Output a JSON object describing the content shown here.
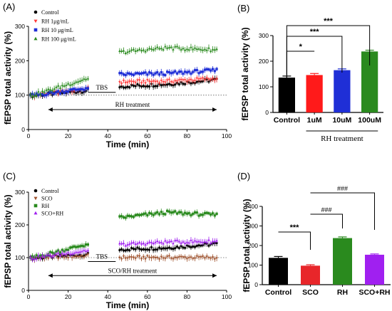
{
  "panels": {
    "A": {
      "label": "(A)"
    },
    "B": {
      "label": "(B)"
    },
    "C": {
      "label": "(C)"
    },
    "D": {
      "label": "(D)"
    }
  },
  "colors": {
    "control": "#000000",
    "rh1": "#ff3b3b",
    "rh10": "#1f2fd6",
    "rh100": "#2a8a1e",
    "sco": "#a0522d",
    "rh": "#2a8a1e",
    "scorh": "#a020f0"
  },
  "chart_data": [
    {
      "type": "scatter",
      "panel": "A",
      "ylabel": "fEPSP total activity (%)",
      "xlabel": "Time (min)",
      "xlim": [
        0,
        100
      ],
      "ylim": [
        0,
        300
      ],
      "xticks": [
        0,
        20,
        40,
        60,
        80,
        100
      ],
      "yticks": [
        0,
        100,
        200,
        300
      ],
      "baseline": 100,
      "annotations": {
        "tbs": "TBS",
        "treatment": "RH treatment"
      },
      "series": [
        {
          "name": "Control",
          "marker": "circle",
          "color": "#000000",
          "pre": [
            [
              1,
              98
            ],
            [
              29,
              113
            ]
          ],
          "post": [
            [
              46,
              125
            ],
            [
              70,
              132
            ],
            [
              95,
              145
            ]
          ]
        },
        {
          "name": "RH 1μg/mL",
          "marker": "triangle-down",
          "color": "#ff3b3b",
          "pre": [
            [
              1,
              98
            ],
            [
              29,
              118
            ]
          ],
          "post": [
            [
              46,
              138
            ],
            [
              70,
              140
            ],
            [
              95,
              148
            ]
          ]
        },
        {
          "name": "RH 10 μg/mL",
          "marker": "square",
          "color": "#1f2fd6",
          "pre": [
            [
              1,
              98
            ],
            [
              29,
              120
            ]
          ],
          "post": [
            [
              46,
              160
            ],
            [
              70,
              163
            ],
            [
              95,
              172
            ]
          ]
        },
        {
          "name": "RH 100 μg/mL",
          "marker": "triangle-up",
          "color": "#2a8a1e",
          "pre": [
            [
              1,
              98
            ],
            [
              29,
              148
            ]
          ],
          "post": [
            [
              46,
              225
            ],
            [
              70,
              238
            ],
            [
              95,
              232
            ]
          ]
        }
      ]
    },
    {
      "type": "bar",
      "panel": "B",
      "ylabel": "fEPSP total activity (%)",
      "categories": [
        "Control",
        "1uM",
        "10uM",
        "100uM"
      ],
      "values": [
        136,
        146,
        165,
        238
      ],
      "errors": [
        6,
        6,
        5,
        5
      ],
      "colors": [
        "#000000",
        "#ff1a1a",
        "#1f2fd6",
        "#2a8a1e"
      ],
      "ylim": [
        0,
        300
      ],
      "yticks": [
        0,
        100,
        200,
        300
      ],
      "group_label": "RH treatment",
      "significance": [
        {
          "from": "Control",
          "to": "1uM",
          "label": "*"
        },
        {
          "from": "Control",
          "to": "10uM",
          "label": "***"
        },
        {
          "from": "Control",
          "to": "100uM",
          "label": "***"
        }
      ]
    },
    {
      "type": "scatter",
      "panel": "C",
      "ylabel": "fEPSP total activity (%)",
      "xlabel": "Time (min)",
      "xlim": [
        0,
        100
      ],
      "ylim": [
        0,
        300
      ],
      "xticks": [
        0,
        20,
        40,
        60,
        80,
        100
      ],
      "yticks": [
        0,
        100,
        200,
        300
      ],
      "baseline": 100,
      "annotations": {
        "tbs": "TBS",
        "treatment": "SCO/RH treatment"
      },
      "series": [
        {
          "name": "Control",
          "marker": "circle",
          "color": "#000000",
          "pre": [
            [
              1,
              98
            ],
            [
              29,
              110
            ]
          ],
          "post": [
            [
              46,
              125
            ],
            [
              70,
              130
            ],
            [
              95,
              142
            ]
          ]
        },
        {
          "name": "SCO",
          "marker": "triangle-down",
          "color": "#a0522d",
          "pre": [
            [
              1,
              98
            ],
            [
              29,
              105
            ]
          ],
          "post": [
            [
              46,
              100
            ],
            [
              70,
              100
            ],
            [
              95,
              100
            ]
          ]
        },
        {
          "name": "RH",
          "marker": "square",
          "color": "#2a8a1e",
          "pre": [
            [
              1,
              98
            ],
            [
              29,
              140
            ]
          ],
          "post": [
            [
              46,
              222
            ],
            [
              70,
              238
            ],
            [
              95,
              230
            ]
          ]
        },
        {
          "name": "SCO+RH",
          "marker": "triangle-up",
          "color": "#a020f0",
          "pre": [
            [
              1,
              98
            ],
            [
              29,
              122
            ]
          ],
          "post": [
            [
              46,
              140
            ],
            [
              70,
              148
            ],
            [
              95,
              150
            ]
          ]
        }
      ]
    },
    {
      "type": "bar",
      "panel": "D",
      "ylabel": "fEPSP total activity (%)",
      "categories": [
        "Control",
        "SCO",
        "RH",
        "SCO+RH"
      ],
      "values": [
        137,
        97,
        238,
        153
      ],
      "errors": [
        7,
        5,
        6,
        4
      ],
      "colors": [
        "#000000",
        "#e8262a",
        "#2a8a1e",
        "#a020f0"
      ],
      "ylim": [
        0,
        400
      ],
      "yticks": [
        0,
        100,
        200,
        300,
        400
      ],
      "significance": [
        {
          "from": "Control",
          "to": "SCO",
          "label": "***"
        },
        {
          "from": "SCO",
          "to": "RH",
          "label": "###"
        },
        {
          "from": "SCO",
          "to": "SCO+RH",
          "label": "###"
        }
      ]
    }
  ]
}
